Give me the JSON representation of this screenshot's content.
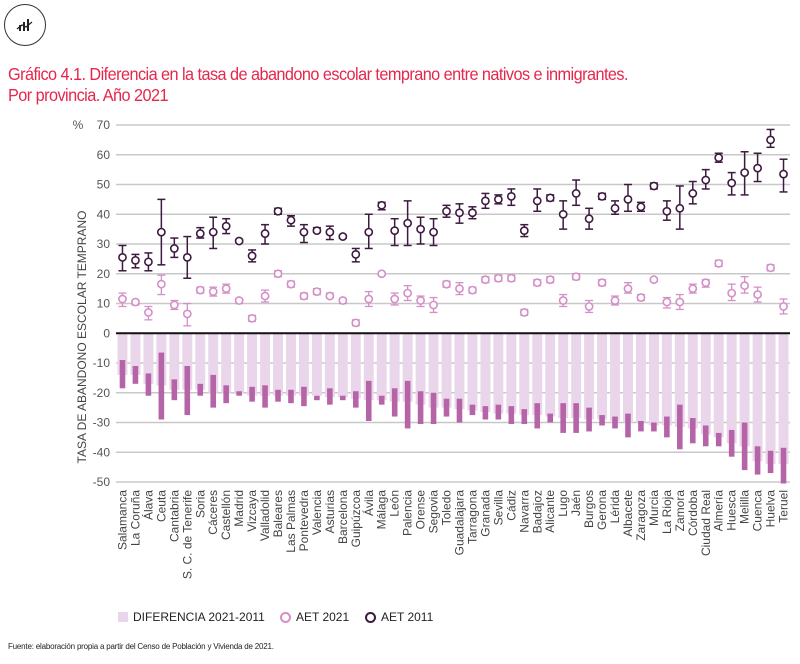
{
  "header": {
    "icon": "chart-icon",
    "title_line1": "Gráfico 4.1. Diferencia en la tasa de abandono escolar temprano entre nativos e inmigrantes.",
    "title_line2": "Por provincia. Año 2021"
  },
  "footer": {
    "source": "Fuente: elaboración propia a partir del Censo de Población y Vivienda de 2021."
  },
  "legend": {
    "diff": "DIFERENCIA 2021-2011",
    "aet2021": "AET 2021",
    "aet2011": "AET 2011"
  },
  "colors": {
    "diff_bar": "#ead6ea",
    "diff_range": "#b565a7",
    "aet2021": "#d48fc7",
    "aet2011": "#3d1a3f",
    "title": "#e5274d",
    "grid": "#c8c8c8"
  },
  "chart_data": {
    "type": "bar",
    "title": "Gráfico 4.1. Diferencia en la tasa de abandono escolar temprano entre nativos e inmigrantes. Por provincia. Año 2021",
    "xlabel": "",
    "ylabel": "TASA DE ABANDONO ESCOLAR TEMPRANO",
    "yunit": "%",
    "ylim": [
      -50,
      70
    ],
    "yticks": [
      70,
      60,
      50,
      40,
      30,
      20,
      10,
      0,
      -10,
      -20,
      -30,
      -40,
      -50
    ],
    "grid": true,
    "legend_position": "bottom",
    "categories": [
      "Salamanca",
      "La Coruña",
      "Álava",
      "Ceuta",
      "Cantabria",
      "S. C. de Tenerife",
      "Soria",
      "Cáceres",
      "Castellón",
      "Madrid",
      "Vizcaya",
      "Valladolid",
      "Baleares",
      "Las Palmas",
      "Pontevedra",
      "Valencia",
      "Asturias",
      "Barcelona",
      "Guipúzcoa",
      "Ávila",
      "Málaga",
      "León",
      "Palencia",
      "Orense",
      "Segovia",
      "Toledo",
      "Guadalajara",
      "Tarragona",
      "Granada",
      "Sevilla",
      "Cádiz",
      "Navarra",
      "Badajoz",
      "Alicante",
      "Lugo",
      "Jaén",
      "Burgos",
      "Gerona",
      "Lérida",
      "Albacete",
      "Zaragoza",
      "Murcia",
      "La Rioja",
      "Zamora",
      "Córdoba",
      "Ciudad Real",
      "Almería",
      "Huesca",
      "Melilla",
      "Cuenca",
      "Huelva",
      "Teruel"
    ],
    "series": [
      {
        "name": "DIFERENCIA 2021-2011",
        "kind": "bar-with-range",
        "values": [
          -14,
          -14,
          -17,
          -17.5,
          -19,
          -19,
          -19,
          -20,
          -20,
          -20,
          -21,
          -21,
          -21,
          -21,
          -21,
          -21,
          -21.5,
          -21.5,
          -22,
          -22.5,
          -22.5,
          -23,
          -23,
          -24,
          -25,
          -25,
          -25.5,
          -26,
          -26.5,
          -27,
          -27,
          -27.5,
          -27.5,
          -28,
          -28.5,
          -28.5,
          -29,
          -29,
          -29.5,
          -30,
          -30,
          -31,
          -31,
          -31.5,
          -32,
          -34,
          -35,
          -37,
          -38,
          -43,
          -44,
          -44
        ],
        "lower": [
          -18.5,
          -17,
          -21,
          -29,
          -22.5,
          -27.5,
          -21,
          -25,
          -23.5,
          -21,
          -23,
          -25,
          -23,
          -23.5,
          -24.5,
          -22.5,
          -24,
          -22.5,
          -25,
          -29.5,
          -24,
          -28,
          -32,
          -30.5,
          -30.5,
          -28,
          -30,
          -27.5,
          -29,
          -29,
          -30.5,
          -30.5,
          -32,
          -30,
          -33.5,
          -33.5,
          -33,
          -31,
          -32,
          -35,
          -33,
          -33,
          -35,
          -39,
          -37,
          -38,
          -38,
          -41.5,
          -46,
          -47.5,
          -47,
          -50.5
        ],
        "upper": [
          -9,
          -11,
          -13.5,
          -6.5,
          -15.5,
          -11,
          -17,
          -14,
          -17.5,
          -19.5,
          -18,
          -17.5,
          -19,
          -19,
          -18,
          -21,
          -18.5,
          -21,
          -19.5,
          -16,
          -21,
          -18.5,
          -16,
          -19.5,
          -20,
          -22,
          -22,
          -24,
          -24.5,
          -24,
          -24.5,
          -25.5,
          -23.5,
          -27,
          -23.5,
          -23.5,
          -25,
          -27.5,
          -28,
          -27,
          -29.5,
          -30,
          -28,
          -24,
          -28.5,
          -31,
          -33.5,
          -32.5,
          -30,
          -38,
          -39.5,
          -38.5
        ]
      },
      {
        "name": "AET 2021",
        "kind": "point-with-errorbar",
        "values": [
          11.5,
          10.5,
          7,
          16.5,
          9.5,
          6.5,
          14.5,
          14,
          15,
          11,
          5,
          12.5,
          20,
          16.5,
          12.5,
          14,
          12.5,
          11,
          3.5,
          11.5,
          20,
          11.5,
          13.5,
          11,
          9.5,
          16.5,
          15,
          14.5,
          18,
          18.5,
          18.5,
          7,
          17,
          18,
          11,
          19,
          9,
          17,
          11,
          15,
          12,
          18,
          10.5,
          10.5,
          15,
          17,
          23.5,
          13.5,
          16,
          13,
          22,
          9
        ],
        "lower": [
          9,
          9.5,
          4.5,
          13,
          8,
          2.5,
          13.5,
          12.5,
          13.5,
          10,
          4,
          10.5,
          19,
          15.5,
          11.5,
          13,
          12,
          10,
          2.5,
          9,
          19.5,
          9.5,
          11,
          9,
          7,
          15.5,
          13,
          13.5,
          17,
          17.5,
          17.5,
          6,
          16,
          17,
          9,
          18,
          7,
          16,
          9.5,
          13.5,
          11,
          17.5,
          8.5,
          8,
          13.5,
          15.5,
          22.5,
          11,
          13.5,
          10.5,
          21,
          6.5
        ],
        "upper": [
          13.5,
          11,
          9,
          19.5,
          11,
          10,
          15.5,
          15.5,
          16.5,
          11.5,
          6,
          14.5,
          21,
          17.5,
          13.5,
          15,
          13.5,
          11.5,
          4.5,
          14,
          20.5,
          13.5,
          16,
          12.5,
          12,
          17.5,
          17,
          15.5,
          19,
          19.5,
          19.5,
          8,
          18,
          19,
          13,
          20,
          11,
          18,
          12.5,
          17,
          13,
          18.5,
          12,
          13,
          16.5,
          18,
          24.5,
          16.5,
          19,
          15.5,
          23,
          11.5
        ]
      },
      {
        "name": "AET 2011",
        "kind": "point-with-errorbar",
        "values": [
          25.5,
          24.5,
          24,
          34,
          28.5,
          25.5,
          33.5,
          34,
          36,
          31,
          26,
          33.5,
          41,
          38,
          34,
          34.5,
          34,
          32.5,
          26.5,
          34,
          43,
          34.5,
          37,
          35,
          34,
          41,
          40.5,
          40.5,
          44.5,
          45,
          46,
          34.5,
          44.5,
          45.5,
          40,
          47,
          38.5,
          46,
          42,
          45,
          42.5,
          49.5,
          41,
          42,
          47,
          51.5,
          59,
          50.5,
          54,
          55.5,
          65,
          53.5
        ],
        "lower": [
          21,
          22,
          21,
          23,
          25.5,
          18.5,
          32,
          28.5,
          33.5,
          30.5,
          24,
          30,
          40,
          36,
          30.5,
          34,
          31.5,
          32,
          24,
          28.5,
          41.5,
          29.5,
          29.5,
          30,
          29.5,
          39,
          37,
          38.5,
          42,
          43.5,
          43,
          32.5,
          41,
          44.5,
          35,
          43,
          35,
          45,
          40,
          41,
          41,
          48.5,
          38,
          35,
          43.5,
          48.5,
          57.5,
          46.5,
          46.5,
          51,
          62.5,
          47.5
        ],
        "upper": [
          29.5,
          26.5,
          27,
          45,
          32,
          32.5,
          35.5,
          39,
          38.5,
          31.5,
          28,
          36.5,
          42,
          39.5,
          36.5,
          35.5,
          36,
          33,
          28.5,
          40,
          44,
          38.5,
          44.5,
          39,
          38.5,
          43,
          43.5,
          42.5,
          47,
          46.5,
          48.5,
          36.5,
          48.5,
          46.5,
          44.5,
          51.5,
          42,
          47,
          44.5,
          50,
          44,
          50.5,
          44.5,
          49.5,
          51,
          55,
          60.5,
          54,
          61,
          60.5,
          68.5,
          58.5
        ]
      }
    ]
  }
}
